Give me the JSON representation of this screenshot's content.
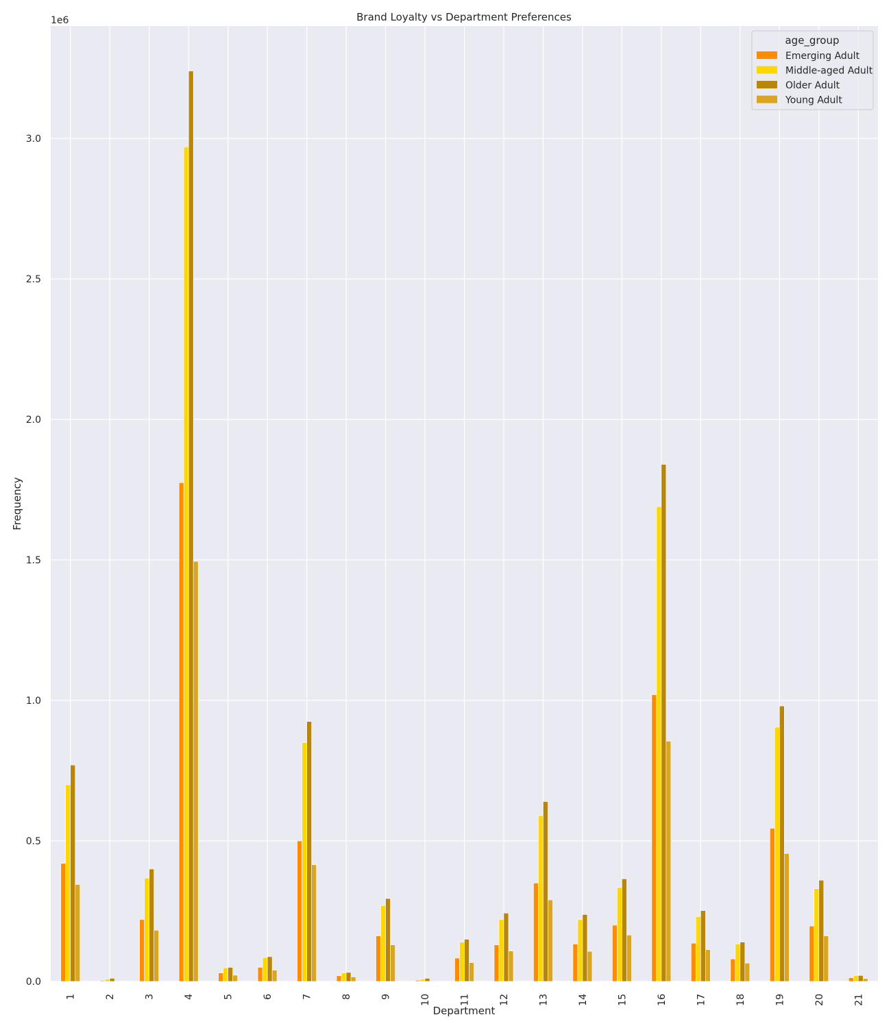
{
  "chart_data": {
    "type": "bar",
    "title": "Brand Loyalty vs Department Preferences",
    "xlabel": "Department",
    "ylabel": "Frequency",
    "y_scale_note": "1e6",
    "y_ticks": [
      "0.0",
      "0.5",
      "1.0",
      "1.5",
      "2.0",
      "2.5",
      "3.0"
    ],
    "ylim": [
      0,
      3.4
    ],
    "grid": true,
    "legend_title": "age_group",
    "legend_position": "top-right",
    "categories": [
      "1",
      "2",
      "3",
      "4",
      "5",
      "6",
      "7",
      "8",
      "9",
      "10",
      "11",
      "12",
      "13",
      "14",
      "15",
      "16",
      "17",
      "18",
      "19",
      "20",
      "21"
    ],
    "series": [
      {
        "name": "Emerging Adult",
        "color": "#FF8C00",
        "values": [
          0.42,
          0.003,
          0.22,
          1.775,
          0.03,
          0.05,
          0.5,
          0.02,
          0.162,
          0.004,
          0.083,
          0.13,
          0.35,
          0.133,
          0.2,
          1.02,
          0.136,
          0.08,
          0.545,
          0.197,
          0.013
        ]
      },
      {
        "name": "Middle-aged Adult",
        "color": "#FFD700",
        "values": [
          0.7,
          0.008,
          0.368,
          2.97,
          0.048,
          0.085,
          0.85,
          0.03,
          0.27,
          0.008,
          0.14,
          0.22,
          0.59,
          0.22,
          0.334,
          1.69,
          0.23,
          0.133,
          0.905,
          0.33,
          0.021
        ]
      },
      {
        "name": "Older Adult",
        "color": "#B8860B",
        "values": [
          0.77,
          0.011,
          0.4,
          3.24,
          0.05,
          0.088,
          0.925,
          0.032,
          0.295,
          0.011,
          0.15,
          0.243,
          0.64,
          0.238,
          0.365,
          1.84,
          0.252,
          0.14,
          0.98,
          0.36,
          0.021
        ]
      },
      {
        "name": "Young Adult",
        "color": "#DAA520",
        "values": [
          0.345,
          0.002,
          0.182,
          1.495,
          0.022,
          0.04,
          0.415,
          0.016,
          0.13,
          0.002,
          0.067,
          0.108,
          0.29,
          0.107,
          0.165,
          0.855,
          0.113,
          0.065,
          0.455,
          0.162,
          0.01
        ]
      }
    ]
  }
}
